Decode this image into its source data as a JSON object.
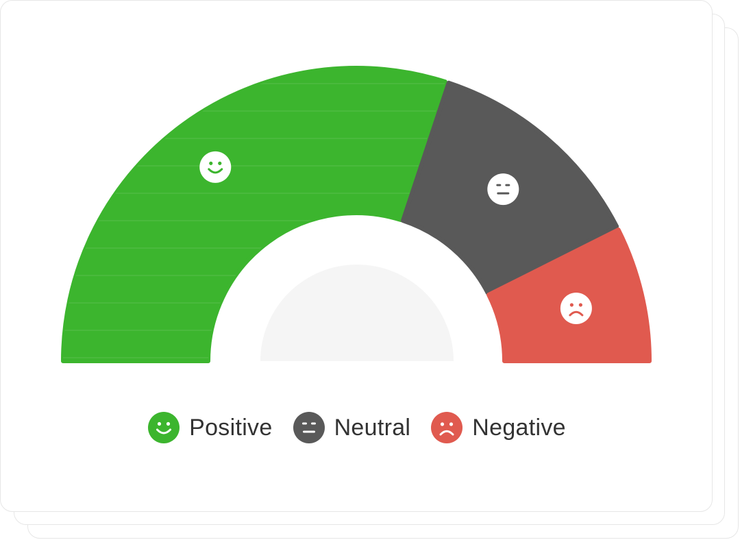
{
  "chart_data": {
    "type": "pie",
    "variant": "semicircle-gauge",
    "categories": [
      "Positive",
      "Neutral",
      "Negative"
    ],
    "values": [
      60,
      25,
      15
    ],
    "unit": "%",
    "colors": {
      "Positive": "#3cb52e",
      "Neutral": "#595959",
      "Negative": "#e05a4f"
    },
    "icons": {
      "Positive": "smile-face-icon",
      "Neutral": "neutral-face-icon",
      "Negative": "frown-face-icon"
    },
    "legend_position": "bottom-center",
    "title": ""
  },
  "legend": {
    "items": [
      {
        "label": "Positive",
        "icon": "smile-face-icon",
        "color": "#3cb52e"
      },
      {
        "label": "Neutral",
        "icon": "neutral-face-icon",
        "color": "#595959"
      },
      {
        "label": "Negative",
        "icon": "frown-face-icon",
        "color": "#e05a4f"
      }
    ]
  }
}
